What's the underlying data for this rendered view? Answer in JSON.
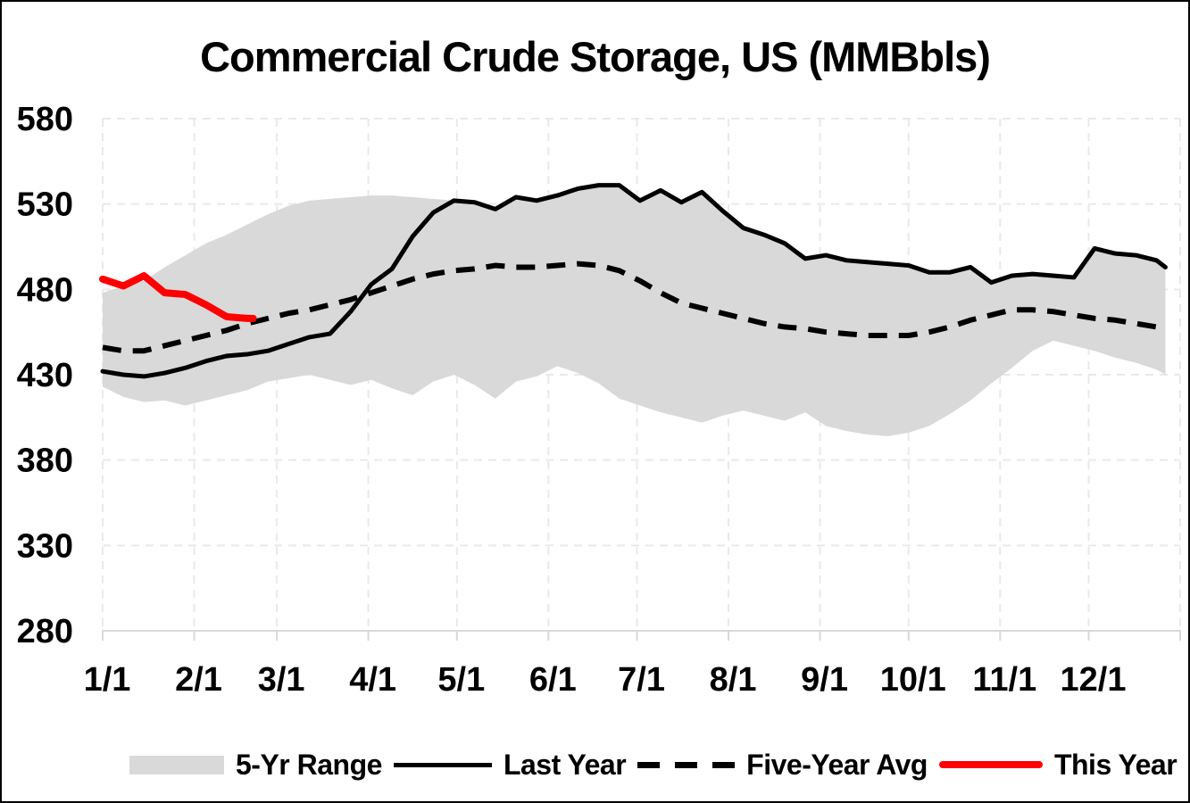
{
  "chart_data": {
    "type": "line",
    "title": "Commercial Crude Storage, US (MMBbls)",
    "legend_position": "bottom",
    "x_axis": {
      "tick_labels": [
        "1/1",
        "2/1",
        "3/1",
        "4/1",
        "5/1",
        "6/1",
        "7/1",
        "8/1",
        "9/1",
        "10/1",
        "11/1",
        "12/1"
      ],
      "tick_days": [
        1,
        32,
        60,
        91,
        121,
        152,
        182,
        213,
        244,
        274,
        305,
        335
      ],
      "domain_days": [
        1,
        366
      ]
    },
    "y_axis": {
      "ticks": [
        280,
        330,
        380,
        430,
        480,
        530,
        580
      ],
      "range": [
        280,
        580
      ],
      "gridlines": "dashed"
    },
    "week_days": [
      1,
      8,
      15,
      22,
      29,
      36,
      43,
      50,
      57,
      64,
      71,
      78,
      85,
      92,
      99,
      106,
      113,
      120,
      127,
      134,
      141,
      148,
      155,
      162,
      169,
      176,
      183,
      190,
      197,
      204,
      211,
      218,
      225,
      232,
      239,
      246,
      253,
      260,
      267,
      274,
      281,
      288,
      295,
      302,
      309,
      316,
      323,
      330,
      337,
      344,
      351,
      358,
      361
    ],
    "series": [
      {
        "name": "5-Yr Range",
        "type": "band",
        "color": "#d9d9d9",
        "high": [
          478,
          482,
          485,
          493,
          500,
          507,
          512,
          518,
          524,
          529,
          532,
          533,
          534,
          535,
          535,
          534,
          533,
          532,
          531,
          527,
          534,
          532,
          535,
          539,
          541,
          541,
          532,
          538,
          531,
          537,
          526,
          516,
          512,
          507,
          498,
          500,
          497,
          496,
          495,
          494,
          490,
          490,
          493,
          484,
          488,
          489,
          488,
          487,
          504,
          501,
          500,
          497,
          493
        ],
        "low": [
          423,
          417,
          414,
          415,
          412,
          415,
          418,
          421,
          426,
          428,
          430,
          427,
          424,
          427,
          422,
          418,
          426,
          430,
          424,
          416,
          426,
          429,
          435,
          431,
          425,
          416,
          412,
          408,
          405,
          402,
          406,
          409,
          406,
          403,
          408,
          400,
          397,
          395,
          394,
          396,
          400,
          407,
          415,
          425,
          434,
          444,
          450,
          447,
          444,
          440,
          437,
          433,
          430
        ]
      },
      {
        "name": "Last Year",
        "type": "line",
        "style": "solid",
        "color": "#000000",
        "stroke_width": 5,
        "values": [
          432,
          430,
          429,
          431,
          434,
          438,
          441,
          442,
          444,
          448,
          452,
          454,
          467,
          483,
          492,
          511,
          525,
          532,
          531,
          527,
          534,
          532,
          535,
          539,
          541,
          541,
          532,
          538,
          531,
          537,
          526,
          516,
          512,
          507,
          498,
          500,
          497,
          496,
          495,
          494,
          490,
          490,
          493,
          484,
          488,
          489,
          488,
          487,
          504,
          501,
          500,
          497,
          493
        ]
      },
      {
        "name": "Five-Year Avg",
        "type": "line",
        "style": "dashed",
        "color": "#000000",
        "stroke_width": 6,
        "values": [
          446,
          444,
          444,
          447,
          450,
          453,
          456,
          460,
          463,
          466,
          468,
          471,
          474,
          478,
          482,
          486,
          489,
          491,
          492,
          494,
          493,
          493,
          494,
          495,
          494,
          491,
          485,
          478,
          472,
          469,
          466,
          463,
          460,
          458,
          457,
          455,
          454,
          453,
          453,
          453,
          455,
          458,
          462,
          465,
          468,
          468,
          467,
          465,
          463,
          462,
          460,
          458,
          456
        ]
      },
      {
        "name": "This Year",
        "type": "line",
        "style": "solid",
        "color": "#ff0000",
        "stroke_width": 8,
        "days": [
          1,
          8,
          15,
          22,
          29,
          36,
          43,
          50,
          52
        ],
        "values": [
          486,
          482,
          488,
          478,
          477,
          471,
          464,
          463,
          463
        ]
      }
    ],
    "legend": {
      "items": [
        {
          "label": "5-Yr Range"
        },
        {
          "label": "Last Year"
        },
        {
          "label": "Five-Year Avg"
        },
        {
          "label": "This Year"
        }
      ]
    },
    "colors": {
      "band": "#d9d9d9",
      "line": "#000000",
      "this_year": "#ff0000",
      "gridline": "#e9e9e9",
      "axis": "#d9d9d9"
    }
  }
}
